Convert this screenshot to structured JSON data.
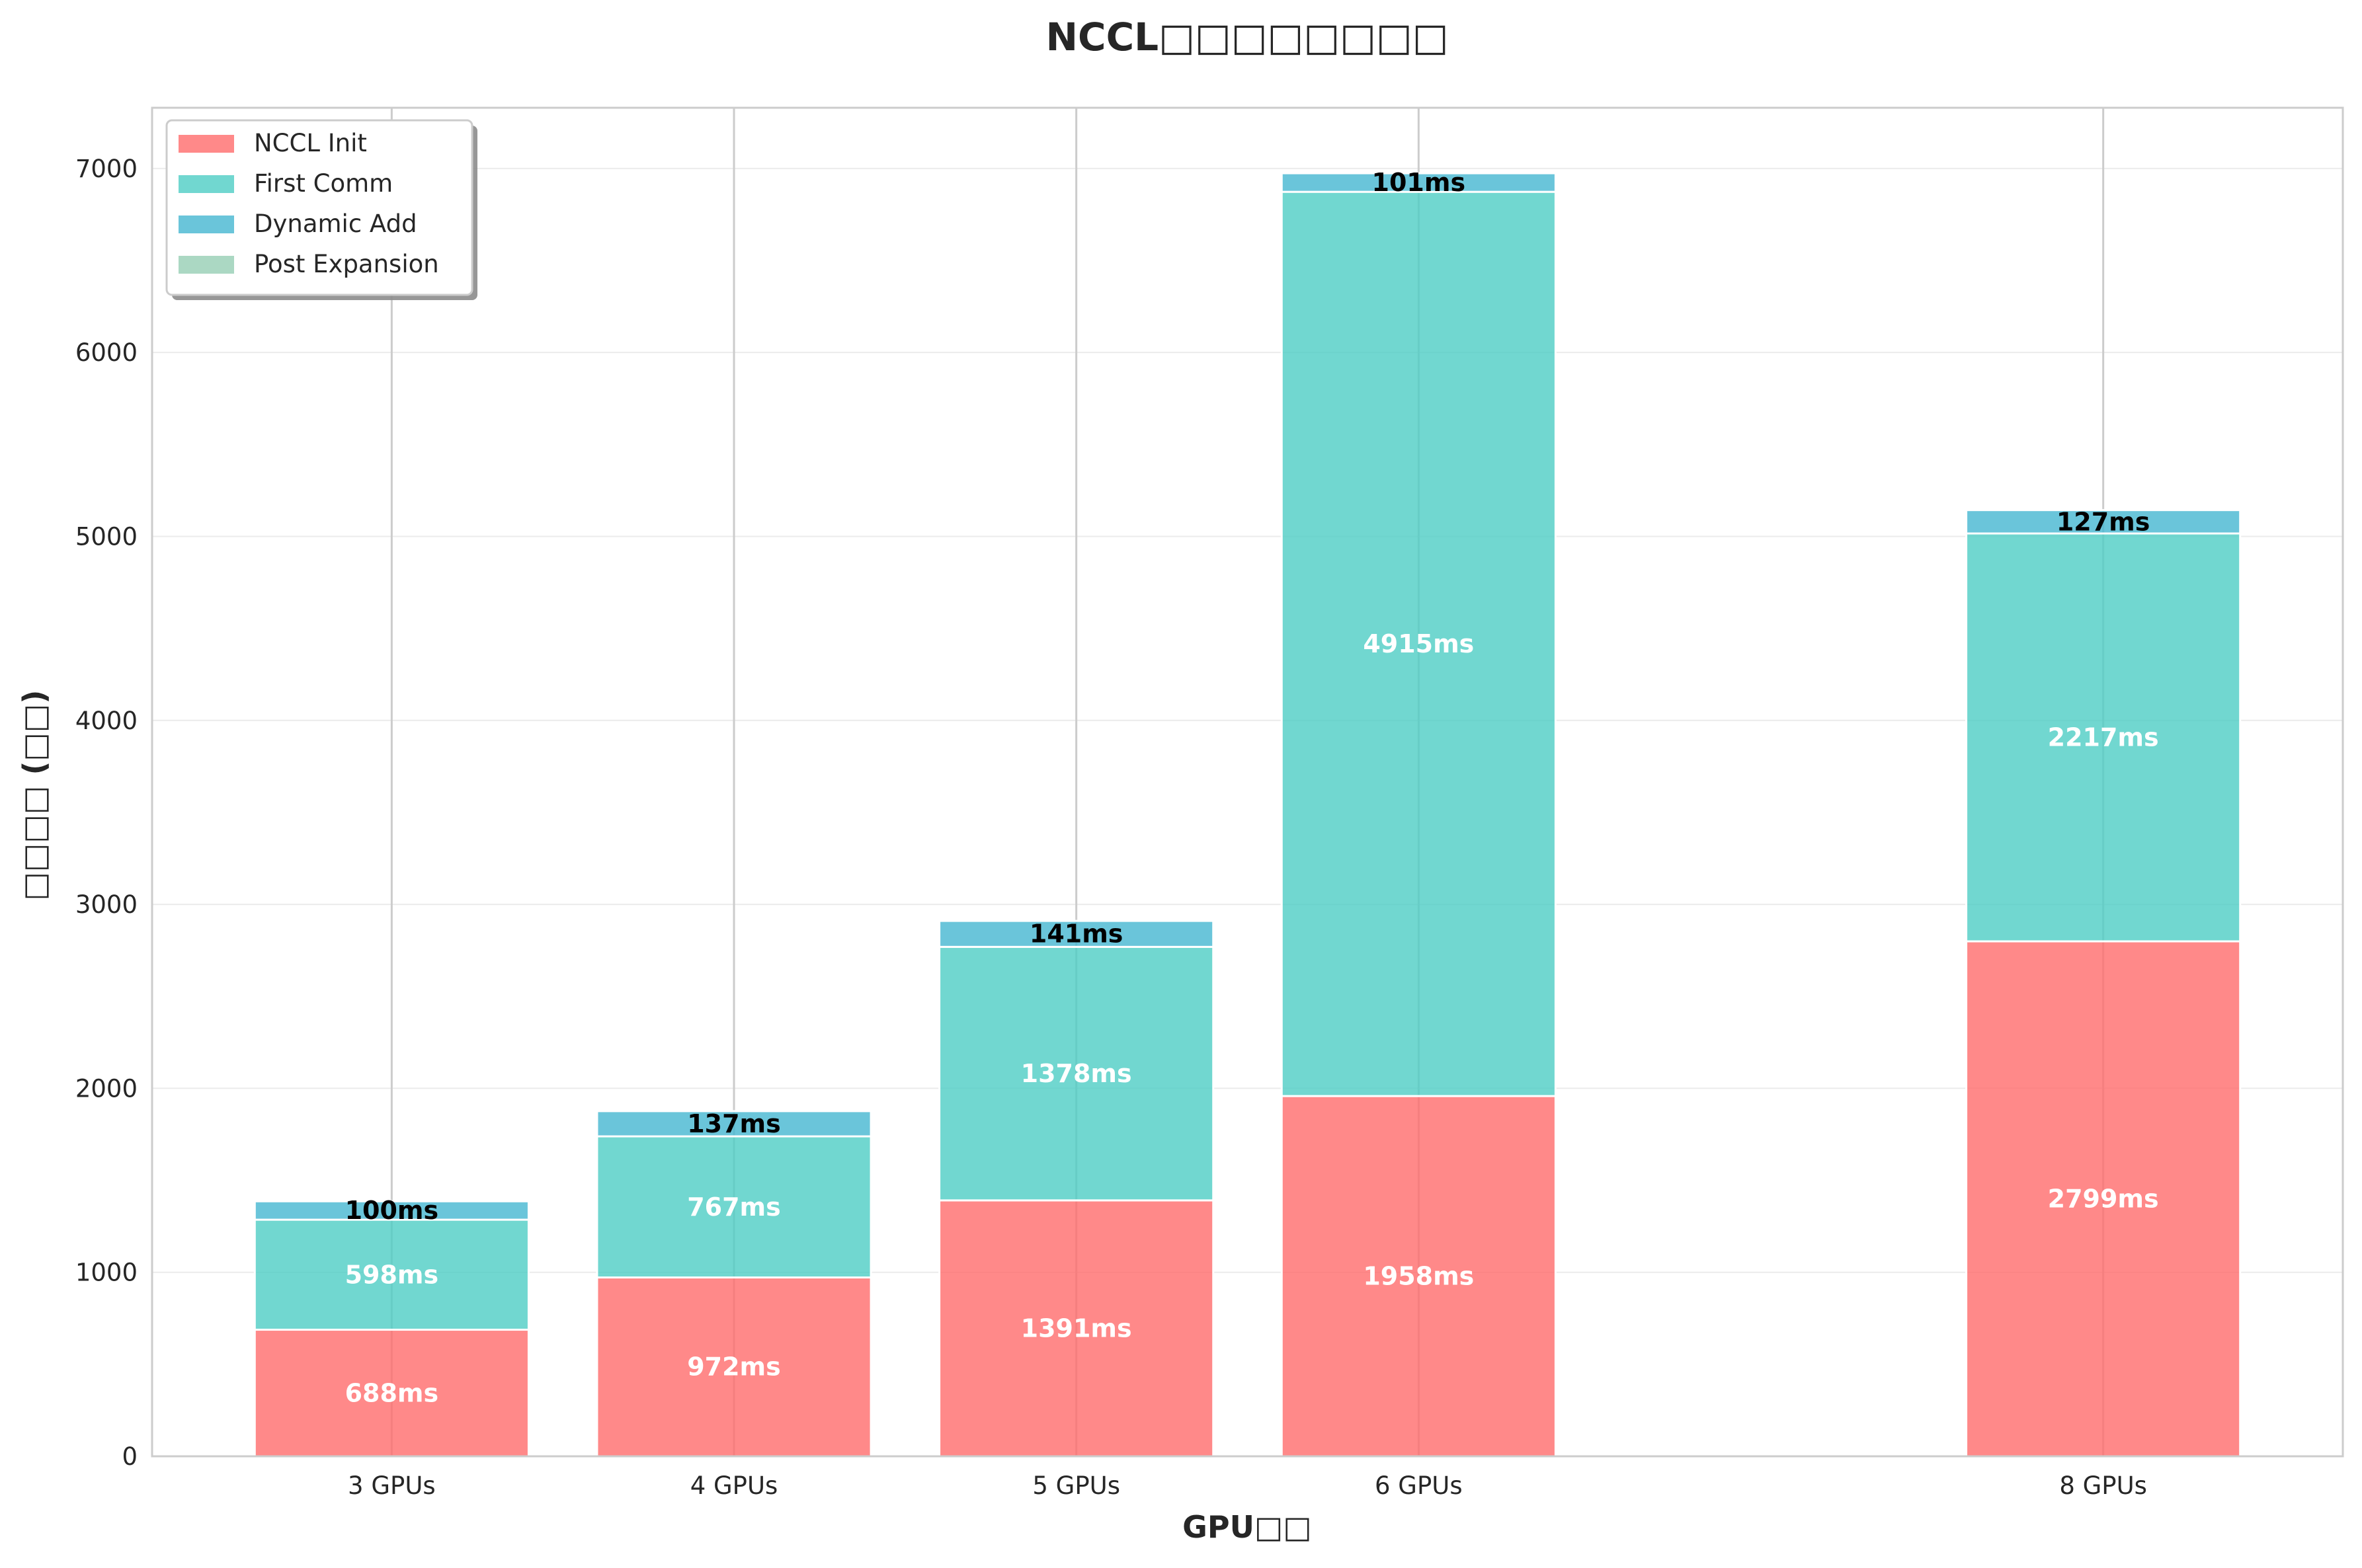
{
  "chart_data": {
    "type": "bar",
    "stacked": true,
    "title": "NCCL□□□□□□□□",
    "xlabel": "GPU□□",
    "ylabel": "□□□□ (□□)",
    "x": [
      3,
      4,
      5,
      6,
      8
    ],
    "categories": [
      "3 GPUs",
      "4 GPUs",
      "5 GPUs",
      "6 GPUs",
      "8 GPUs"
    ],
    "series": [
      {
        "name": "NCCL Init",
        "color": "#ff6b6b",
        "values": [
          688,
          972,
          1391,
          1958,
          2799
        ]
      },
      {
        "name": "First Comm",
        "color": "#4ecdc4",
        "values": [
          598,
          767,
          1378,
          4915,
          2217
        ]
      },
      {
        "name": "Dynamic Add",
        "color": "#45b7d1",
        "values": [
          100,
          137,
          141,
          101,
          127
        ]
      },
      {
        "name": "Post Expansion",
        "color": "#96ceb4",
        "values": [
          0,
          0,
          0,
          0,
          0
        ]
      }
    ],
    "value_labels": [
      [
        "688ms",
        "972ms",
        "1391ms",
        "1958ms",
        "2799ms"
      ],
      [
        "598ms",
        "767ms",
        "1378ms",
        "4915ms",
        "2217ms"
      ],
      [
        "100ms",
        "137ms",
        "141ms",
        "101ms",
        "127ms"
      ]
    ],
    "ylim": [
      0,
      7330
    ],
    "yticks": [
      0,
      1000,
      2000,
      3000,
      4000,
      5000,
      6000,
      7000
    ],
    "xlim": [
      2.3,
      8.7
    ],
    "grid": true,
    "legend_position": "top-left"
  }
}
